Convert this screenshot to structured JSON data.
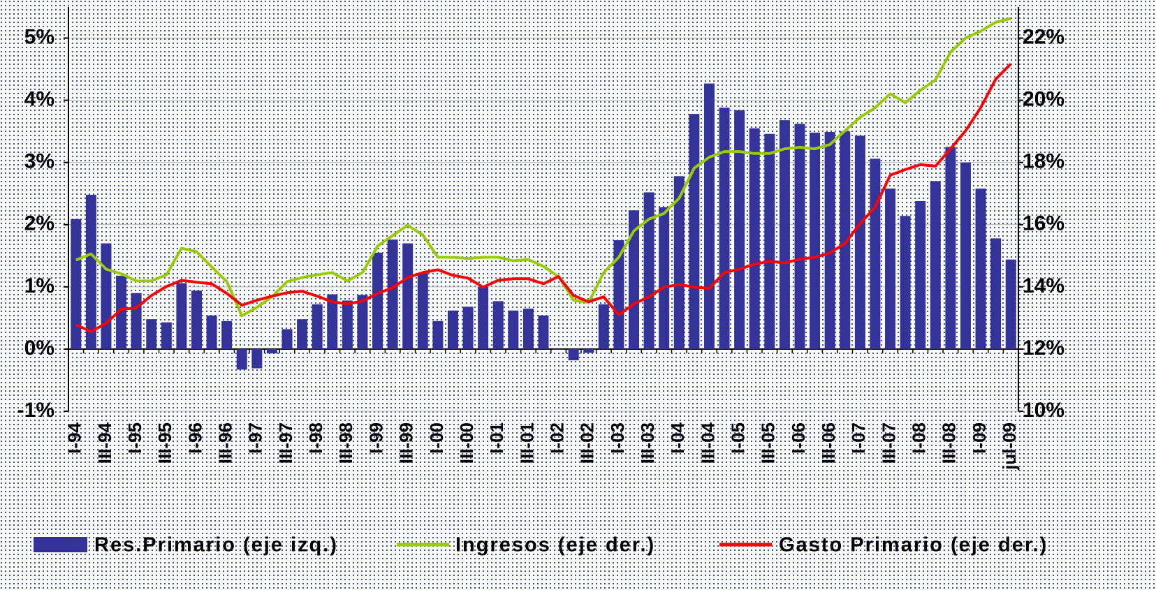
{
  "chart_data": {
    "type": "bar",
    "categories": [
      "I-94",
      null,
      "III-94",
      null,
      "I-95",
      null,
      "III-95",
      null,
      "I-96",
      null,
      "III-96",
      null,
      "I-97",
      null,
      "III-97",
      null,
      "I-98",
      null,
      "III-98",
      null,
      "I-99",
      null,
      "III-99",
      null,
      "I-00",
      null,
      "III-00",
      null,
      "I-01",
      null,
      "III-01",
      null,
      "I-02",
      null,
      "III-02",
      null,
      "I-03",
      null,
      "III-03",
      null,
      "I-04",
      null,
      "III-04",
      null,
      "I-05",
      null,
      "III-05",
      null,
      "I-06",
      null,
      "III-06",
      null,
      "I-07",
      null,
      "III-07",
      null,
      "I-08",
      null,
      "III-08",
      null,
      "I-09",
      null,
      "jul-09"
    ],
    "series": [
      {
        "name": "Res.Primario (eje izq.)",
        "type": "bar",
        "color": "#333399",
        "values": [
          2.09,
          2.48,
          1.7,
          1.18,
          0.9,
          0.48,
          0.43,
          1.06,
          0.94,
          0.54,
          0.45,
          -0.33,
          -0.31,
          -0.07,
          0.32,
          0.48,
          0.72,
          0.88,
          0.78,
          0.87,
          1.55,
          1.76,
          1.7,
          1.22,
          0.45,
          0.62,
          0.68,
          1.0,
          0.77,
          0.62,
          0.65,
          0.54,
          0.0,
          -0.18,
          -0.06,
          0.72,
          1.75,
          2.23,
          2.52,
          2.28,
          2.78,
          3.78,
          4.27,
          3.88,
          3.84,
          3.55,
          3.46,
          3.68,
          3.62,
          3.48,
          3.49,
          3.5,
          3.43,
          3.06,
          2.58,
          2.14,
          2.38,
          2.7,
          3.25,
          3.0,
          2.58,
          1.78,
          1.44
        ]
      },
      {
        "name": "Ingresos (eje der.)",
        "type": "line",
        "axis": "y2",
        "color": "#99cc00",
        "values": [
          14.86,
          15.06,
          14.57,
          14.42,
          14.19,
          14.19,
          14.39,
          15.24,
          15.13,
          14.64,
          14.17,
          13.07,
          13.34,
          13.68,
          14.17,
          14.3,
          14.39,
          14.46,
          14.19,
          14.46,
          15.31,
          15.65,
          15.98,
          15.67,
          14.95,
          14.95,
          14.91,
          14.95,
          14.95,
          14.84,
          14.88,
          14.66,
          14.33,
          13.57,
          13.5,
          14.46,
          14.95,
          15.8,
          16.18,
          16.36,
          16.85,
          17.82,
          18.17,
          18.35,
          18.35,
          18.29,
          18.29,
          18.44,
          18.49,
          18.44,
          18.58,
          19.02,
          19.45,
          19.76,
          20.21,
          19.92,
          20.32,
          20.66,
          21.55,
          22.0,
          22.22,
          22.51,
          22.63
        ]
      },
      {
        "name": "Gasto Primario (eje der.)",
        "type": "line",
        "axis": "y2",
        "color": "#ff0000",
        "values": [
          12.78,
          12.56,
          12.83,
          13.28,
          13.32,
          13.72,
          14.01,
          14.21,
          14.15,
          14.1,
          13.79,
          13.41,
          13.57,
          13.7,
          13.81,
          13.86,
          13.7,
          13.52,
          13.45,
          13.54,
          13.79,
          13.97,
          14.3,
          14.46,
          14.55,
          14.37,
          14.28,
          13.99,
          14.21,
          14.26,
          14.26,
          14.1,
          14.33,
          13.72,
          13.52,
          13.68,
          13.1,
          13.45,
          13.68,
          13.99,
          14.08,
          13.99,
          13.95,
          14.46,
          14.57,
          14.73,
          14.82,
          14.77,
          14.89,
          14.95,
          15.09,
          15.4,
          16.03,
          16.56,
          17.59,
          17.77,
          17.93,
          17.88,
          18.44,
          19.02,
          19.76,
          20.68,
          21.17
        ]
      }
    ],
    "ylim": [
      -1,
      5.5
    ],
    "yticks": [
      {
        "value": -1,
        "label": "-1%"
      },
      {
        "value": 0,
        "label": "0%"
      },
      {
        "value": 1,
        "label": "1%"
      },
      {
        "value": 2,
        "label": "2%"
      },
      {
        "value": 3,
        "label": "3%"
      },
      {
        "value": 4,
        "label": "4%"
      },
      {
        "value": 5,
        "label": "5%"
      }
    ],
    "y2lim": [
      10,
      23
    ],
    "y2ticks": [
      {
        "value": 10,
        "label": "10%"
      },
      {
        "value": 12,
        "label": "12%"
      },
      {
        "value": 14,
        "label": "14%"
      },
      {
        "value": 16,
        "label": "16%"
      },
      {
        "value": 18,
        "label": "18%"
      },
      {
        "value": 20,
        "label": "20%"
      },
      {
        "value": 22,
        "label": "22%"
      }
    ],
    "grid": true,
    "legend": "bottom"
  }
}
